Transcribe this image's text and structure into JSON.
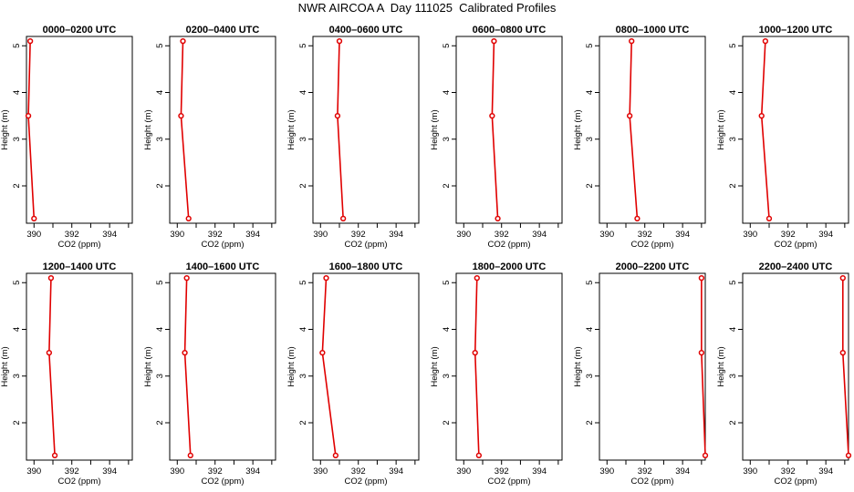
{
  "figure": {
    "title": "NWR AIRCOA A  Day 111025  Calibrated Profiles"
  },
  "style": {
    "line_color": "#e00000",
    "marker_color": "#e00000",
    "axis_color": "#000000"
  },
  "chart_data": [
    {
      "type": "line",
      "title": "0000–0200 UTC",
      "xlabel": "CO2 (ppm)",
      "ylabel": "Height (m)",
      "xlim": [
        389.6,
        395.2
      ],
      "ylim": [
        1.2,
        5.2
      ],
      "xticks": [
        390,
        392,
        394
      ],
      "yticks": [
        2,
        3,
        4,
        5
      ],
      "x": [
        389.8,
        389.7,
        390.0
      ],
      "y": [
        5.1,
        3.5,
        1.3
      ]
    },
    {
      "type": "line",
      "title": "0200–0400 UTC",
      "xlabel": "CO2 (ppm)",
      "ylabel": "Height (m)",
      "xlim": [
        389.6,
        395.2
      ],
      "ylim": [
        1.2,
        5.2
      ],
      "xticks": [
        390,
        392,
        394
      ],
      "yticks": [
        2,
        3,
        4,
        5
      ],
      "x": [
        390.3,
        390.2,
        390.6
      ],
      "y": [
        5.1,
        3.5,
        1.3
      ]
    },
    {
      "type": "line",
      "title": "0400–0600 UTC",
      "xlabel": "CO2 (ppm)",
      "ylabel": "Height (m)",
      "xlim": [
        389.6,
        395.2
      ],
      "ylim": [
        1.2,
        5.2
      ],
      "xticks": [
        390,
        392,
        394
      ],
      "yticks": [
        2,
        3,
        4,
        5
      ],
      "x": [
        391.0,
        390.9,
        391.2
      ],
      "y": [
        5.1,
        3.5,
        1.3
      ]
    },
    {
      "type": "line",
      "title": "0600–0800 UTC",
      "xlabel": "CO2 (ppm)",
      "ylabel": "Height (m)",
      "xlim": [
        389.6,
        395.2
      ],
      "ylim": [
        1.2,
        5.2
      ],
      "xticks": [
        390,
        392,
        394
      ],
      "yticks": [
        2,
        3,
        4,
        5
      ],
      "x": [
        391.6,
        391.5,
        391.8
      ],
      "y": [
        5.1,
        3.5,
        1.3
      ]
    },
    {
      "type": "line",
      "title": "0800–1000 UTC",
      "xlabel": "CO2 (ppm)",
      "ylabel": "Height (m)",
      "xlim": [
        389.6,
        395.2
      ],
      "ylim": [
        1.2,
        5.2
      ],
      "xticks": [
        390,
        392,
        394
      ],
      "yticks": [
        2,
        3,
        4,
        5
      ],
      "x": [
        391.3,
        391.2,
        391.6
      ],
      "y": [
        5.1,
        3.5,
        1.3
      ]
    },
    {
      "type": "line",
      "title": "1000–1200 UTC",
      "xlabel": "CO2 (ppm)",
      "ylabel": "Height (m)",
      "xlim": [
        389.6,
        395.2
      ],
      "ylim": [
        1.2,
        5.2
      ],
      "xticks": [
        390,
        392,
        394
      ],
      "yticks": [
        2,
        3,
        4,
        5
      ],
      "x": [
        390.8,
        390.6,
        391.0
      ],
      "y": [
        5.1,
        3.5,
        1.3
      ]
    },
    {
      "type": "line",
      "title": "1200–1400 UTC",
      "xlabel": "CO2 (ppm)",
      "ylabel": "Height (m)",
      "xlim": [
        389.6,
        395.2
      ],
      "ylim": [
        1.2,
        5.2
      ],
      "xticks": [
        390,
        392,
        394
      ],
      "yticks": [
        2,
        3,
        4,
        5
      ],
      "x": [
        390.9,
        390.8,
        391.1
      ],
      "y": [
        5.1,
        3.5,
        1.3
      ]
    },
    {
      "type": "line",
      "title": "1400–1600 UTC",
      "xlabel": "CO2 (ppm)",
      "ylabel": "Height (m)",
      "xlim": [
        389.6,
        395.2
      ],
      "ylim": [
        1.2,
        5.2
      ],
      "xticks": [
        390,
        392,
        394
      ],
      "yticks": [
        2,
        3,
        4,
        5
      ],
      "x": [
        390.5,
        390.4,
        390.7
      ],
      "y": [
        5.1,
        3.5,
        1.3
      ]
    },
    {
      "type": "line",
      "title": "1600–1800 UTC",
      "xlabel": "CO2 (ppm)",
      "ylabel": "Height (m)",
      "xlim": [
        389.6,
        395.2
      ],
      "ylim": [
        1.2,
        5.2
      ],
      "xticks": [
        390,
        392,
        394
      ],
      "yticks": [
        2,
        3,
        4,
        5
      ],
      "x": [
        390.3,
        390.1,
        390.8
      ],
      "y": [
        5.1,
        3.5,
        1.3
      ]
    },
    {
      "type": "line",
      "title": "1800–2000 UTC",
      "xlabel": "CO2 (ppm)",
      "ylabel": "Height (m)",
      "xlim": [
        389.6,
        395.2
      ],
      "ylim": [
        1.2,
        5.2
      ],
      "xticks": [
        390,
        392,
        394
      ],
      "yticks": [
        2,
        3,
        4,
        5
      ],
      "x": [
        390.7,
        390.6,
        390.8
      ],
      "y": [
        5.1,
        3.5,
        1.3
      ]
    },
    {
      "type": "line",
      "title": "2000–2200 UTC",
      "xlabel": "CO2 (ppm)",
      "ylabel": "Height (m)",
      "xlim": [
        389.6,
        395.2
      ],
      "ylim": [
        1.2,
        5.2
      ],
      "xticks": [
        390,
        392,
        394
      ],
      "yticks": [
        2,
        3,
        4,
        5
      ],
      "x": [
        395.0,
        395.0,
        395.2
      ],
      "y": [
        5.1,
        3.5,
        1.3
      ]
    },
    {
      "type": "line",
      "title": "2200–2400 UTC",
      "xlabel": "CO2 (ppm)",
      "ylabel": "Height (m)",
      "xlim": [
        389.6,
        395.2
      ],
      "ylim": [
        1.2,
        5.2
      ],
      "xticks": [
        390,
        392,
        394
      ],
      "yticks": [
        2,
        3,
        4,
        5
      ],
      "x": [
        394.9,
        394.9,
        395.2
      ],
      "y": [
        5.1,
        3.5,
        1.3
      ]
    }
  ]
}
